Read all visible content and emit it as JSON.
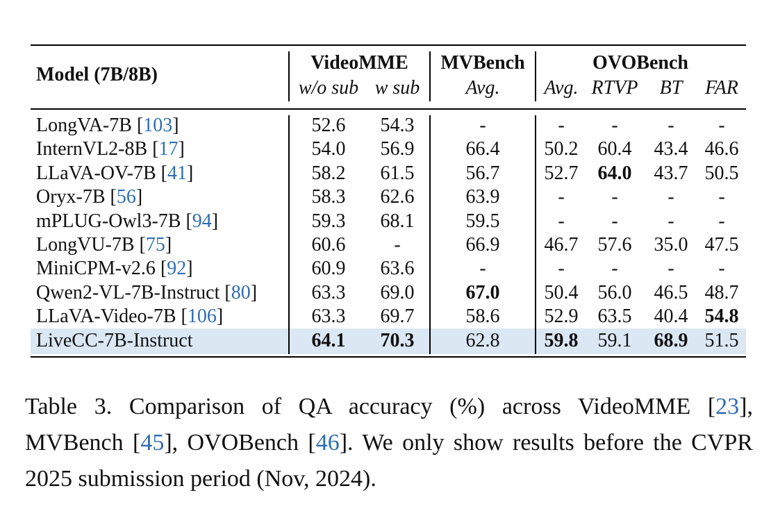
{
  "header": {
    "model_col": "Model (7B/8B)",
    "groups": [
      {
        "name": "VideoMME",
        "subs": [
          "w/o sub",
          "w sub"
        ]
      },
      {
        "name": "MVBench",
        "subs": [
          "Avg."
        ]
      },
      {
        "name": "OVOBench",
        "subs": [
          "Avg.",
          "RTVP",
          "BT",
          "FAR"
        ]
      }
    ]
  },
  "rows": [
    {
      "model": "LongVA-7B",
      "ref": "103",
      "values": [
        "52.6",
        "54.3",
        "-",
        "-",
        "-",
        "-",
        "-"
      ],
      "bold": []
    },
    {
      "model": "InternVL2-8B",
      "ref": "17",
      "values": [
        "54.0",
        "56.9",
        "66.4",
        "50.2",
        "60.4",
        "43.4",
        "46.6"
      ],
      "bold": []
    },
    {
      "model": "LLaVA-OV-7B",
      "ref": "41",
      "values": [
        "58.2",
        "61.5",
        "56.7",
        "52.7",
        "64.0",
        "43.7",
        "50.5"
      ],
      "bold": [
        4
      ]
    },
    {
      "model": "Oryx-7B",
      "ref": "56",
      "values": [
        "58.3",
        "62.6",
        "63.9",
        "-",
        "-",
        "-",
        "-"
      ],
      "bold": []
    },
    {
      "model": "mPLUG-Owl3-7B",
      "ref": "94",
      "values": [
        "59.3",
        "68.1",
        "59.5",
        "-",
        "-",
        "-",
        "-"
      ],
      "bold": []
    },
    {
      "model": "LongVU-7B",
      "ref": "75",
      "values": [
        "60.6",
        "-",
        "66.9",
        "46.7",
        "57.6",
        "35.0",
        "47.5"
      ],
      "bold": []
    },
    {
      "model": "MiniCPM-v2.6",
      "ref": "92",
      "values": [
        "60.9",
        "63.6",
        "-",
        "-",
        "-",
        "-",
        "-"
      ],
      "bold": []
    },
    {
      "model": "Qwen2-VL-7B-Instruct",
      "ref": "80",
      "values": [
        "63.3",
        "69.0",
        "67.0",
        "50.4",
        "56.0",
        "46.5",
        "48.7"
      ],
      "bold": [
        2
      ]
    },
    {
      "model": "LLaVA-Video-7B",
      "ref": "106",
      "values": [
        "63.3",
        "69.7",
        "58.6",
        "52.9",
        "63.5",
        "40.4",
        "54.8"
      ],
      "bold": [
        6
      ]
    },
    {
      "model": "LiveCC-7B-Instruct",
      "ref": "",
      "values": [
        "64.1",
        "70.3",
        "62.8",
        "59.8",
        "59.1",
        "68.9",
        "51.5"
      ],
      "bold": [
        0,
        1,
        3,
        5
      ],
      "highlight": true
    }
  ],
  "caption": {
    "label": "Table 3.",
    "parts": [
      {
        "t": " Comparison of QA accuracy (%) across VideoMME "
      },
      {
        "t": "[",
        "r": false
      },
      {
        "t": "23",
        "r": true
      },
      {
        "t": "],",
        "r": false
      },
      {
        "t": " MVBench "
      },
      {
        "t": "[",
        "r": false
      },
      {
        "t": "45",
        "r": true
      },
      {
        "t": "],",
        "r": false
      },
      {
        "t": " OVOBench "
      },
      {
        "t": "[",
        "r": false
      },
      {
        "t": "46",
        "r": true
      },
      {
        "t": "].",
        "r": false
      },
      {
        "t": " We only show results before the CVPR 2025 submission period (Nov, 2024)."
      }
    ]
  },
  "colors": {
    "highlight": "#dbe8f4",
    "ref": "#2e6db4"
  }
}
